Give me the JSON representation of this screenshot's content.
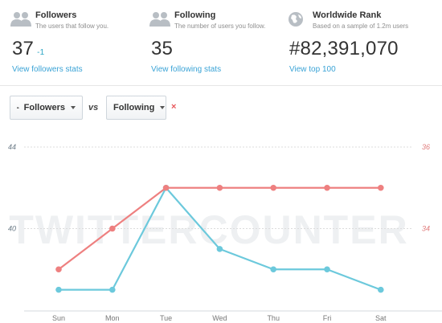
{
  "stats": {
    "followers": {
      "title": "Followers",
      "subtitle": "The users that follow you.",
      "value": "37",
      "delta": "-1",
      "link": "View followers stats",
      "icon": "users-icon"
    },
    "following": {
      "title": "Following",
      "subtitle": "The number of users you follow.",
      "value": "35",
      "link": "View following stats",
      "icon": "users-icon"
    },
    "rank": {
      "title": "Worldwide Rank",
      "subtitle": "Based on a sample of 1.2m users",
      "value": "#82,391,070",
      "link": "View top 100",
      "icon": "globe-icon"
    }
  },
  "compare": {
    "left_label": "Followers",
    "vs_label": "vs",
    "right_label": "Following",
    "remove_label": "×"
  },
  "watermark": "TWITTERCOUNTER",
  "colors": {
    "followers": "#6cc9dc",
    "following": "#ee8080",
    "link": "#3aa3d6",
    "grid": "#dcdcdc"
  },
  "chart_data": {
    "type": "line",
    "categories": [
      "Sun",
      "Mon",
      "Tue",
      "Wed",
      "Thu",
      "Fri",
      "Sat"
    ],
    "left_axis": {
      "ticks": [
        "44",
        "40"
      ],
      "range": [
        36,
        44
      ]
    },
    "right_axis": {
      "ticks": [
        "36",
        "34"
      ],
      "range": [
        32,
        36
      ]
    },
    "series": [
      {
        "key": "followers",
        "axis": "left",
        "values": [
          37,
          37,
          42,
          39,
          38,
          38,
          37
        ]
      },
      {
        "key": "following",
        "axis": "right",
        "values": [
          33,
          34,
          35,
          35,
          35,
          35,
          35
        ]
      }
    ],
    "grid": true
  }
}
